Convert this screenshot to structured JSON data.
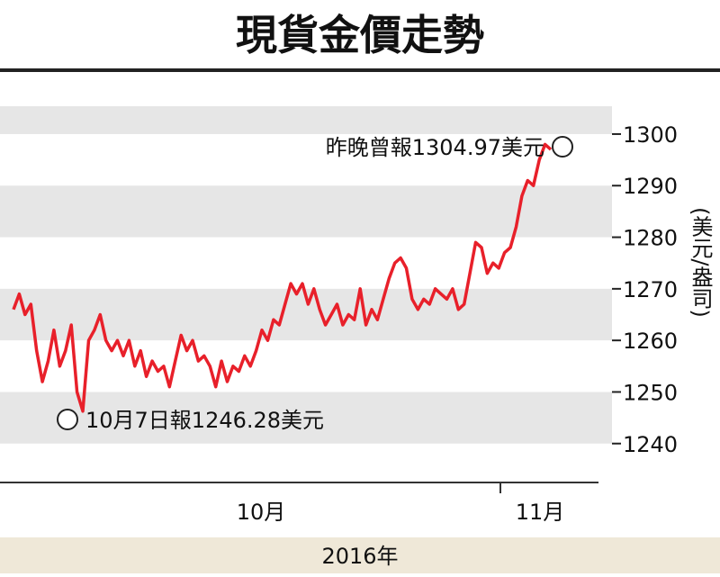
{
  "chart_data": {
    "type": "line",
    "title": "現貨金價走勢",
    "values": [
      1266,
      1269,
      1265,
      1267,
      1258,
      1252,
      1256,
      1262,
      1255,
      1258,
      1263,
      1250,
      1246.28,
      1260,
      1262,
      1265,
      1260,
      1258,
      1260,
      1257,
      1260,
      1255,
      1258,
      1253,
      1256,
      1254,
      1255,
      1251,
      1256,
      1261,
      1258,
      1260,
      1256,
      1257,
      1255,
      1251,
      1256,
      1252,
      1255,
      1254,
      1257,
      1255,
      1258,
      1262,
      1260,
      1264,
      1263,
      1267,
      1271,
      1269,
      1271,
      1267,
      1270,
      1266,
      1263,
      1265,
      1267,
      1263,
      1265,
      1264,
      1270,
      1263,
      1266,
      1264,
      1268,
      1272,
      1275,
      1276,
      1274,
      1268,
      1266,
      1268,
      1267,
      1270,
      1269,
      1268,
      1270,
      1266,
      1267,
      1273,
      1279,
      1278,
      1273,
      1275,
      1274,
      1277,
      1278,
      1282,
      1288,
      1291,
      1290,
      1295,
      1298,
      1297
    ],
    "color": "#e8202a",
    "ylim": [
      1233.5,
      1305.4
    ],
    "yticks": [
      1240,
      1250,
      1260,
      1270,
      1280,
      1290,
      1300
    ],
    "y_label": "(美元/盎司)",
    "x_labels": [
      "10月",
      "11月"
    ],
    "x_title": "2016年",
    "annotations": [
      "昨晚曾報1304.97美元",
      "10月7日報1246.28美元"
    ]
  }
}
